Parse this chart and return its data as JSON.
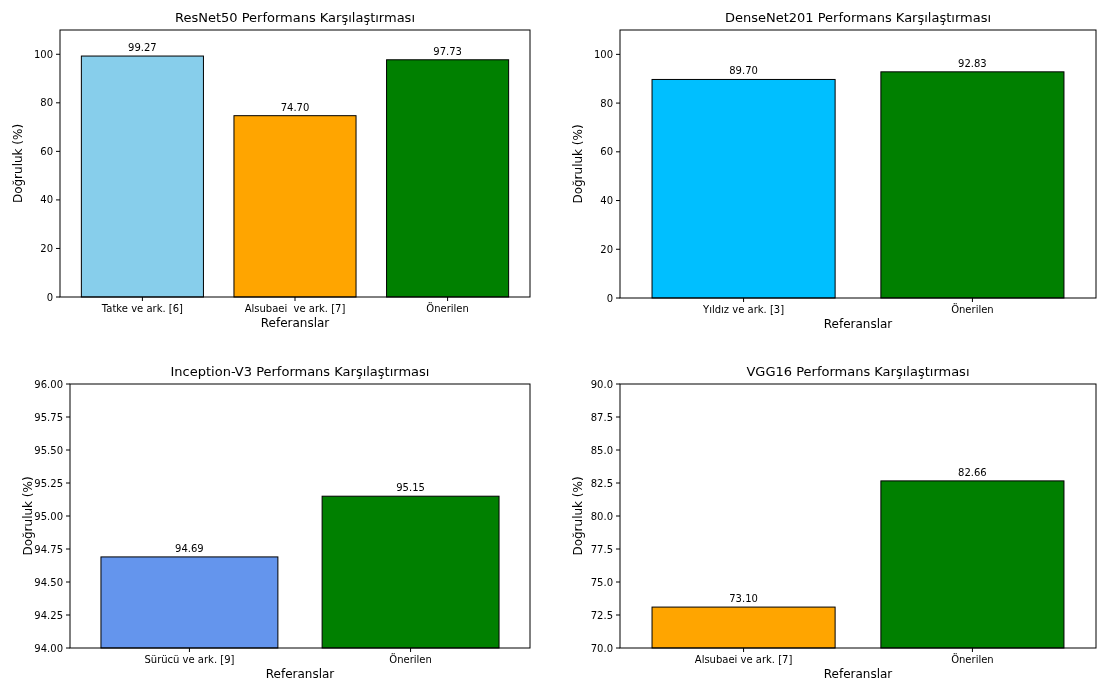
{
  "chart_data": [
    {
      "type": "bar",
      "title": "ResNet50 Performans Karşılaştırması",
      "xlabel": "Referanslar",
      "ylabel": "Doğruluk (%)",
      "categories": [
        "Tatke ve ark. [6]",
        "Alsubaei  ve ark. [7]",
        "Önerilen"
      ],
      "values": [
        99.27,
        74.7,
        97.73
      ],
      "value_labels": [
        "99.27",
        "74.70",
        "97.73"
      ],
      "colors": [
        "#87ceeb",
        "#ffa500",
        "#008000"
      ],
      "ylim": [
        0,
        110
      ],
      "yticks": [
        0,
        20,
        40,
        60,
        80,
        100
      ]
    },
    {
      "type": "bar",
      "title": "DenseNet201 Performans Karşılaştırması",
      "xlabel": "Referanslar",
      "ylabel": "Doğruluk (%)",
      "categories": [
        "Yıldız ve ark. [3]",
        "Önerilen"
      ],
      "values": [
        89.7,
        92.83
      ],
      "value_labels": [
        "89.70",
        "92.83"
      ],
      "colors": [
        "#00bfff",
        "#008000"
      ],
      "ylim": [
        0,
        110
      ],
      "yticks": [
        0,
        20,
        40,
        60,
        80,
        100
      ]
    },
    {
      "type": "bar",
      "title": "Inception-V3 Performans Karşılaştırması",
      "xlabel": "Referanslar",
      "ylabel": "Doğruluk (%)",
      "categories": [
        "Sürücü ve ark. [9]",
        "Önerilen"
      ],
      "values": [
        94.69,
        95.15
      ],
      "value_labels": [
        "94.69",
        "95.15"
      ],
      "colors": [
        "#6495ed",
        "#008000"
      ],
      "ylim": [
        94,
        96
      ],
      "yticks": [
        {
          "value": 94,
          "label": "94.00"
        },
        {
          "value": 94.25,
          "label": "94.25"
        },
        {
          "value": 94.5,
          "label": "94.50"
        },
        {
          "value": 94.75,
          "label": "94.75"
        },
        {
          "value": 95,
          "label": "95.00"
        },
        {
          "value": 95.25,
          "label": "95.25"
        },
        {
          "value": 95.5,
          "label": "95.50"
        },
        {
          "value": 95.75,
          "label": "95.75"
        },
        {
          "value": 96,
          "label": "96.00"
        }
      ]
    },
    {
      "type": "bar",
      "title": "VGG16 Performans Karşılaştırması",
      "xlabel": "Referanslar",
      "ylabel": "Doğruluk (%)",
      "categories": [
        "Alsubaei ve ark. [7]",
        "Önerilen"
      ],
      "values": [
        73.1,
        82.66
      ],
      "value_labels": [
        "73.10",
        "82.66"
      ],
      "colors": [
        "#ffa500",
        "#008000"
      ],
      "ylim": [
        70,
        90
      ],
      "yticks": [
        {
          "value": 70,
          "label": "70.0"
        },
        {
          "value": 72.5,
          "label": "72.5"
        },
        {
          "value": 75,
          "label": "75.0"
        },
        {
          "value": 77.5,
          "label": "77.5"
        },
        {
          "value": 80,
          "label": "80.0"
        },
        {
          "value": 82.5,
          "label": "82.5"
        },
        {
          "value": 85,
          "label": "85.0"
        },
        {
          "value": 87.5,
          "label": "87.5"
        },
        {
          "value": 90,
          "label": "90.0"
        }
      ]
    }
  ]
}
